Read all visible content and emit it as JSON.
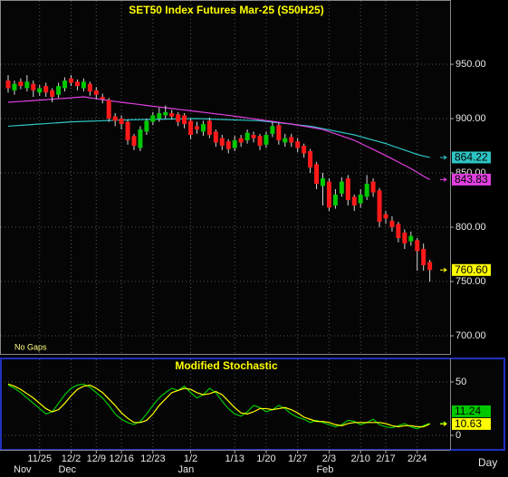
{
  "chart_data": [
    {
      "type": "candlestick",
      "title": "SET50 Index Futures  Mar-25  (S50H25)",
      "note": "No Gaps",
      "x_label": "Day",
      "categories": [
        null,
        null,
        null,
        null,
        null,
        "11/25",
        null,
        null,
        null,
        null,
        "12/2",
        null,
        null,
        null,
        "12/9",
        null,
        null,
        null,
        "12/16",
        null,
        null,
        null,
        null,
        "12/23",
        null,
        null,
        null,
        null,
        null,
        "1/2",
        null,
        null,
        null,
        null,
        null,
        null,
        "1/13",
        null,
        null,
        null,
        null,
        "1/20",
        null,
        null,
        null,
        null,
        "1/27",
        null,
        null,
        null,
        null,
        "2/3",
        null,
        null,
        null,
        null,
        "2/10",
        null,
        null,
        null,
        "2/17",
        null,
        null,
        null,
        null,
        "2/24",
        null,
        null
      ],
      "months": [
        "Nov",
        null,
        null,
        null,
        null,
        null,
        null,
        null,
        null,
        null,
        "Dec",
        null,
        null,
        null,
        null,
        null,
        null,
        null,
        null,
        null,
        null,
        null,
        null,
        null,
        null,
        null,
        null,
        null,
        null,
        "Jan",
        null,
        null,
        null,
        null,
        null,
        null,
        null,
        null,
        null,
        null,
        null,
        null,
        null,
        null,
        null,
        null,
        null,
        null,
        null,
        null,
        null,
        "Feb",
        null,
        null,
        null,
        null,
        null,
        null,
        null,
        null,
        null,
        null,
        null,
        null,
        null,
        null,
        null,
        null
      ],
      "open": [
        935,
        926,
        934,
        928,
        932,
        924,
        930,
        926,
        922,
        928,
        937,
        934,
        928,
        932,
        926,
        920,
        917,
        902,
        900,
        897,
        884,
        873,
        888,
        897,
        900,
        903,
        905,
        904,
        903,
        898,
        893,
        888,
        898,
        888,
        882,
        879,
        873,
        882,
        880,
        885,
        884,
        876,
        886,
        894,
        878,
        883,
        879,
        875,
        870,
        858,
        838,
        842,
        820,
        831,
        845,
        828,
        822,
        828,
        842,
        834,
        812,
        806,
        803,
        795,
        787,
        788,
        780,
        768
      ],
      "high": [
        940,
        935,
        937,
        940,
        935,
        931,
        933,
        928,
        933,
        938,
        940,
        936,
        937,
        934,
        929,
        923,
        919,
        905,
        903,
        899,
        886,
        893,
        900,
        906,
        910,
        912,
        908,
        906,
        905,
        900,
        897,
        898,
        901,
        890,
        885,
        881,
        884,
        885,
        890,
        888,
        886,
        888,
        897,
        896,
        886,
        886,
        882,
        877,
        872,
        860,
        850,
        845,
        835,
        846,
        848,
        830,
        835,
        848,
        845,
        836,
        815,
        810,
        805,
        798,
        796,
        790,
        785,
        770
      ],
      "low": [
        924,
        922,
        927,
        925,
        920,
        921,
        920,
        915,
        919,
        925,
        930,
        926,
        925,
        921,
        918,
        914,
        897,
        893,
        890,
        876,
        871,
        870,
        885,
        894,
        897,
        900,
        899,
        893,
        891,
        881,
        886,
        884,
        882,
        874,
        871,
        868,
        870,
        874,
        877,
        878,
        871,
        873,
        883,
        876,
        874,
        874,
        869,
        864,
        850,
        835,
        820,
        815,
        817,
        828,
        820,
        815,
        818,
        825,
        828,
        800,
        803,
        796,
        786,
        780,
        783,
        760,
        760,
        750
      ],
      "close": [
        928,
        932,
        930,
        934,
        926,
        928,
        924,
        920,
        930,
        935,
        933,
        930,
        934,
        925,
        922,
        918,
        900,
        898,
        895,
        880,
        875,
        890,
        898,
        903,
        905,
        906,
        902,
        897,
        895,
        885,
        890,
        895,
        885,
        878,
        875,
        872,
        880,
        878,
        887,
        882,
        875,
        885,
        893,
        880,
        882,
        878,
        873,
        868,
        855,
        840,
        845,
        818,
        830,
        842,
        825,
        820,
        830,
        840,
        832,
        805,
        808,
        800,
        790,
        785,
        792,
        778,
        765,
        760.6
      ],
      "last_close_label": "760.60",
      "up_color": "#00c800",
      "down_color": "#ff1a1a",
      "ylim": [
        682.5,
        1009.2
      ],
      "yticks": [
        {
          "value": 700,
          "label": "700.00"
        },
        {
          "value": 750,
          "label": "750.00"
        },
        {
          "value": 800,
          "label": "800.00"
        },
        {
          "value": 850,
          "label": "850.00"
        },
        {
          "value": 900,
          "label": "900.00"
        },
        {
          "value": 950,
          "label": "950.00"
        }
      ],
      "grid": true,
      "series": [
        {
          "color": "#2ec4c4",
          "values": [
            893,
            893.4,
            893.8,
            894.2,
            894.6,
            895,
            895.4,
            895.8,
            896.2,
            896.6,
            897,
            897.2,
            897.4,
            897.6,
            897.8,
            898,
            898.2,
            898.4,
            898.6,
            898.8,
            899,
            899.1,
            899.2,
            899.3,
            899.4,
            899.5,
            899.6,
            899.7,
            899.8,
            899.9,
            900,
            899.8,
            899.6,
            899.4,
            899.2,
            899,
            898.8,
            898.6,
            898.4,
            898.2,
            898,
            897.4,
            896.8,
            896.1,
            895.5,
            894.9,
            894.2,
            893.6,
            893,
            891.9,
            890.7,
            889.6,
            888.4,
            887.3,
            886.1,
            885,
            883.4,
            881.8,
            880.2,
            878.6,
            877,
            875,
            873,
            871,
            869,
            867,
            865.5,
            864.22
          ]
        },
        {
          "color": "#e040e0",
          "values": [
            915,
            915.4,
            915.8,
            916.2,
            916.6,
            917,
            917.4,
            917.9,
            918.3,
            918.7,
            919.1,
            919.6,
            920,
            919.2,
            918.3,
            917.5,
            916.7,
            915.8,
            915,
            914.3,
            913.6,
            912.9,
            912.1,
            911.4,
            910.7,
            910,
            909.3,
            908.6,
            907.9,
            907.2,
            906.5,
            905.8,
            905.1,
            904.4,
            903.7,
            903,
            902.2,
            901.4,
            900.6,
            899.8,
            899,
            898.2,
            897.4,
            896.6,
            895.8,
            895,
            894,
            893,
            892,
            891,
            890,
            888,
            886,
            884,
            882,
            880,
            877.2,
            874.4,
            871.6,
            868.8,
            866,
            863,
            860,
            857,
            854,
            850.5,
            847,
            843.83
          ]
        }
      ]
    },
    {
      "type": "line",
      "title": "Modified  Stochastic",
      "ylim": [
        -13.6,
        72
      ],
      "yticks": [
        0,
        50
      ],
      "grid": true,
      "series": [
        {
          "color": "#00c800",
          "values": [
            47,
            44,
            40,
            35,
            30,
            25,
            20,
            22,
            30,
            38,
            44,
            47,
            48,
            45,
            40,
            35,
            28,
            20,
            15,
            12,
            10,
            13,
            20,
            28,
            35,
            40,
            44,
            42,
            46,
            40,
            35,
            38,
            44,
            40,
            32,
            25,
            20,
            18,
            22,
            28,
            26,
            22,
            24,
            28,
            25,
            20,
            17,
            15,
            12,
            14,
            12,
            10,
            8,
            10,
            14,
            13,
            10,
            12,
            15,
            10,
            8,
            7,
            9,
            11,
            8,
            6,
            9,
            11.24
          ]
        },
        {
          "color": "#ffff00",
          "values": [
            48,
            46,
            43,
            39,
            35,
            30,
            25,
            22,
            24,
            30,
            37,
            43,
            46,
            47,
            44,
            40,
            34,
            28,
            21,
            16,
            12,
            12,
            14,
            20,
            28,
            34,
            40,
            42,
            44,
            43,
            40,
            38,
            39,
            41,
            38,
            32,
            26,
            21,
            20,
            22,
            25,
            25,
            24,
            25,
            26,
            24,
            21,
            17,
            15,
            13,
            13,
            12,
            10,
            9,
            11,
            12,
            12,
            12,
            12,
            12,
            11,
            9,
            8,
            9,
            9,
            8,
            8,
            10.63
          ]
        }
      ]
    }
  ]
}
